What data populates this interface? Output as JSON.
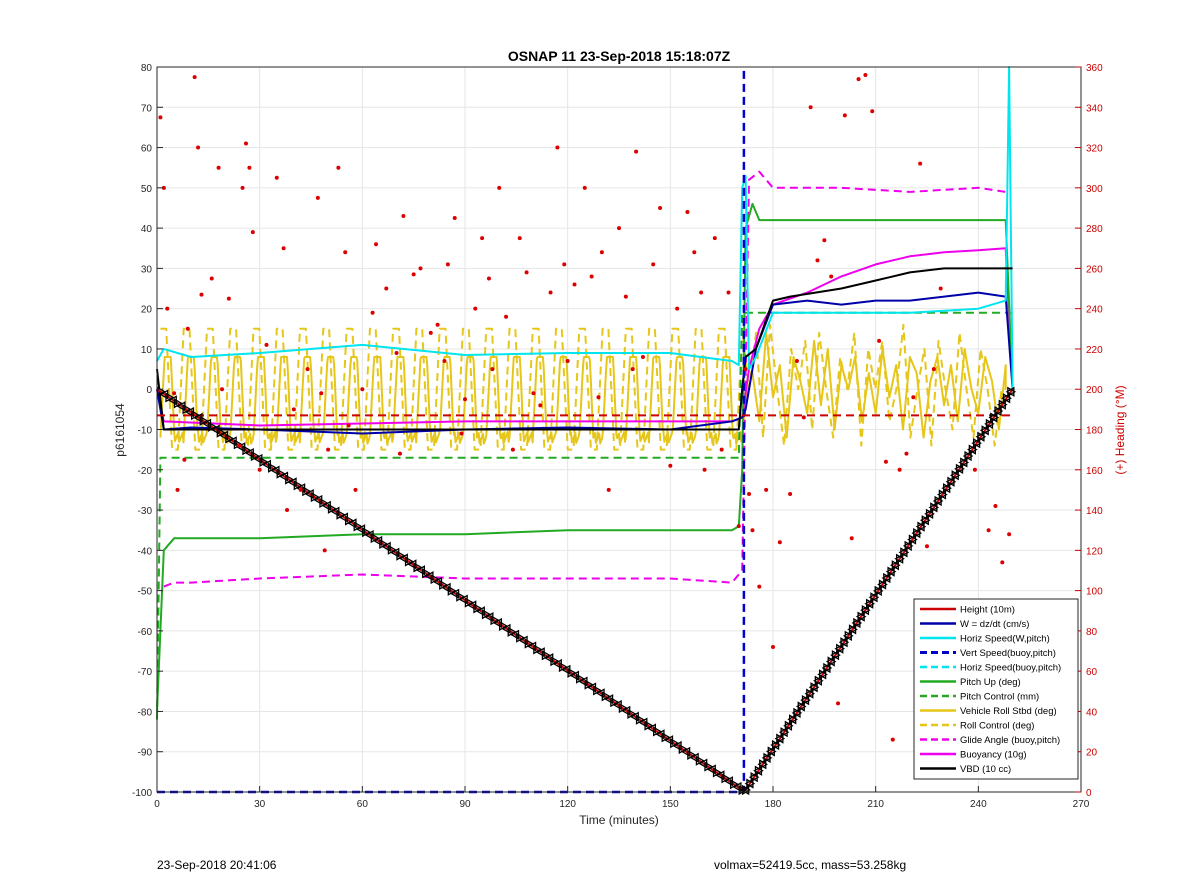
{
  "chart_data": {
    "type": "line",
    "title": "OSNAP 11 23-Sep-2018 15:18:07Z",
    "xlabel": "Time (minutes)",
    "ylabel": "p6161054",
    "y2label": "(+) Heading (°M)",
    "xlim": [
      0,
      270
    ],
    "ylim": [
      -100,
      80
    ],
    "y2lim": [
      0,
      360
    ],
    "xticks": [
      0,
      30,
      60,
      90,
      120,
      150,
      180,
      210,
      240,
      270
    ],
    "yticks": [
      -100,
      -90,
      -80,
      -70,
      -60,
      -50,
      -40,
      -30,
      -20,
      -10,
      0,
      10,
      20,
      30,
      40,
      50,
      60,
      70,
      80
    ],
    "y2ticks": [
      0,
      20,
      40,
      60,
      80,
      100,
      120,
      140,
      160,
      180,
      200,
      220,
      240,
      260,
      280,
      300,
      320,
      340,
      360
    ],
    "grid": true,
    "legend_position": "bottom-right",
    "series": [
      {
        "name": "Height (10m)",
        "color": "#cc0000",
        "style": "solid",
        "width": 2,
        "x": [
          0,
          171,
          172,
          250
        ],
        "y": [
          0,
          -99.5,
          -99.5,
          0
        ]
      },
      {
        "name": "W = dz/dt (cm/s)",
        "color": "#0000aa",
        "style": "solid",
        "width": 2,
        "x": [
          0,
          2,
          10,
          30,
          60,
          90,
          120,
          150,
          168,
          171,
          172,
          175,
          180,
          190,
          200,
          210,
          220,
          240,
          248,
          250
        ],
        "y": [
          0,
          -10,
          -9.5,
          -10,
          -11,
          -10,
          -9.5,
          -10,
          -8,
          -7,
          -5,
          10,
          21,
          22,
          21,
          22,
          22,
          24,
          23,
          0
        ]
      },
      {
        "name": "Horiz Speed(W,pitch)",
        "color": "#00e5ee",
        "style": "solid",
        "width": 2,
        "x": [
          0,
          2,
          10,
          30,
          60,
          90,
          120,
          150,
          168,
          170,
          171,
          172,
          173,
          175,
          180,
          200,
          220,
          240,
          248,
          249,
          250
        ],
        "y": [
          7,
          10,
          8,
          9,
          11,
          8.5,
          9,
          9,
          7,
          6,
          50,
          53,
          5,
          8,
          19,
          19,
          19,
          20,
          22,
          80,
          0
        ]
      },
      {
        "name": "Vert Speed(buoy,pitch)",
        "color": "#0000cc",
        "style": "dashed",
        "width": 2.5,
        "x": [
          0,
          171.5,
          171.5
        ],
        "y": [
          -100,
          -100,
          80
        ]
      },
      {
        "name": "Horiz Speed(buoy,pitch)",
        "color": "#00e5ee",
        "style": "dashed",
        "width": 2,
        "x": [],
        "y": []
      },
      {
        "name": "Pitch Up (deg)",
        "color": "#22aa22",
        "style": "solid",
        "width": 2,
        "x": [
          0,
          2,
          5,
          10,
          30,
          60,
          90,
          120,
          150,
          168,
          170,
          171,
          172,
          174,
          176,
          180,
          200,
          220,
          240,
          248,
          250
        ],
        "y": [
          -80,
          -40,
          -37,
          -37,
          -37,
          -36,
          -36,
          -35,
          -35,
          -35,
          -34,
          -20,
          40,
          46,
          42,
          42,
          42,
          42,
          42,
          42,
          0
        ]
      },
      {
        "name": "Pitch Control (mm)",
        "color": "#22aa22",
        "style": "dashed",
        "width": 2,
        "x": [
          0,
          1,
          2,
          60,
          120,
          168,
          170,
          171,
          173,
          250
        ],
        "y": [
          -82,
          -17,
          -17,
          -17,
          -17,
          -17,
          -17,
          19,
          19,
          19
        ]
      },
      {
        "name": "Vehicle Roll Stbd (deg)",
        "color": "#e6c619",
        "style": "solid",
        "width": 2,
        "x": [],
        "y": []
      },
      {
        "name": "Roll Control (deg)",
        "color": "#e6c619",
        "style": "dashed",
        "width": 2,
        "x": [],
        "y": []
      },
      {
        "name": "Glide Angle (buoy,pitch)",
        "color": "#ee00ee",
        "style": "dashed",
        "width": 2,
        "x": [
          2,
          5,
          10,
          30,
          60,
          90,
          120,
          150,
          168,
          171,
          173,
          176,
          180,
          200,
          220,
          240,
          248
        ],
        "y": [
          -49,
          -48,
          -48,
          -47,
          -46,
          -47,
          -47,
          -47,
          -48,
          -45,
          52,
          54,
          50,
          50,
          49,
          50,
          49
        ]
      },
      {
        "name": "Buoyancy (10g)",
        "color": "#ee00ee",
        "style": "solid",
        "width": 2,
        "x": [
          0,
          2,
          30,
          60,
          90,
          120,
          150,
          168,
          171,
          173,
          176,
          180,
          190,
          200,
          210,
          220,
          230,
          240,
          248,
          250
        ],
        "y": [
          0,
          -8,
          -9,
          -8.5,
          -8,
          -8,
          -8,
          -8,
          -7,
          5,
          15,
          21,
          24,
          28,
          31,
          33,
          34,
          34.5,
          35,
          0
        ]
      },
      {
        "name": "VBD (10 cc)",
        "color": "#000000",
        "style": "solid",
        "width": 2,
        "x": [
          0,
          2,
          30,
          60,
          90,
          120,
          150,
          170,
          171,
          172,
          175,
          180,
          185,
          200,
          210,
          220,
          230,
          240,
          250
        ],
        "y": [
          5,
          -10,
          -10,
          -10,
          -10,
          -10,
          -10,
          -10,
          0,
          8,
          10,
          22,
          23,
          25,
          27,
          29,
          30,
          30,
          30
        ]
      }
    ],
    "roll_stbd": {
      "x_start": 1,
      "x_end": 248,
      "dive_cycle_min": 6.8,
      "dive_low": -12,
      "dive_high": 8,
      "climb_start": 174,
      "climb_values": [
        4,
        -8,
        14,
        -2,
        6,
        -12,
        8,
        2,
        -6,
        12,
        -4,
        10,
        -10,
        6,
        0,
        8,
        -8,
        4,
        -6,
        10,
        -2,
        6,
        -10,
        8,
        4,
        -12,
        2,
        8,
        -4,
        6,
        -8,
        10,
        0,
        -6,
        8,
        2,
        -10,
        6
      ]
    },
    "roll_control": {
      "x_start": 1,
      "x_end": 248,
      "dive_cycle_min": 6.8,
      "dive_low": -15,
      "dive_high": 15
    },
    "heading_deg": {
      "x": [
        1,
        2,
        3,
        5,
        6,
        8,
        9,
        11,
        12,
        13,
        16,
        18,
        19,
        21,
        24,
        25,
        26,
        27,
        28,
        30,
        32,
        35,
        37,
        38,
        40,
        42,
        44,
        47,
        48,
        49,
        50,
        53,
        55,
        56,
        58,
        60,
        63,
        64,
        67,
        70,
        71,
        72,
        75,
        77,
        80,
        82,
        84,
        85,
        87,
        89,
        90,
        93,
        95,
        97,
        98,
        100,
        102,
        104,
        106,
        108,
        110,
        112,
        115,
        117,
        119,
        120,
        122,
        125,
        127,
        129,
        130,
        132,
        135,
        137,
        139,
        140,
        142,
        145,
        147,
        150,
        152,
        155,
        157,
        159,
        160,
        163,
        165,
        167,
        170,
        172,
        173,
        174,
        176,
        178,
        180,
        182,
        185,
        187,
        189,
        191,
        193,
        195,
        197,
        199,
        201,
        203,
        205,
        207,
        209,
        211,
        213,
        215,
        217,
        219,
        221,
        223,
        225,
        227,
        229,
        231,
        233,
        235,
        237,
        239,
        241,
        243,
        245,
        247,
        249
      ],
      "y": [
        335,
        300,
        240,
        198,
        150,
        165,
        230,
        355,
        320,
        247,
        255,
        310,
        200,
        245,
        172,
        300,
        322,
        310,
        278,
        160,
        222,
        305,
        270,
        140,
        190,
        150,
        210,
        295,
        198,
        120,
        170,
        310,
        268,
        182,
        150,
        200,
        238,
        272,
        250,
        218,
        168,
        286,
        257,
        260,
        228,
        232,
        214,
        262,
        285,
        178,
        195,
        240,
        275,
        255,
        210,
        300,
        236,
        170,
        275,
        258,
        198,
        192,
        248,
        320,
        262,
        214,
        252,
        300,
        256,
        196,
        268,
        150,
        280,
        246,
        210,
        318,
        216,
        262,
        290,
        162,
        240,
        288,
        268,
        248,
        160,
        275,
        170,
        248,
        132,
        210,
        148,
        130,
        102,
        150,
        72,
        124,
        148,
        214,
        186,
        340,
        264,
        274,
        256,
        44,
        336,
        126,
        354,
        356,
        338,
        224,
        164,
        26,
        160,
        168,
        196,
        312,
        122,
        210,
        250,
        32,
        30,
        52,
        58,
        160,
        60,
        130,
        142,
        114,
        128
      ]
    },
    "depth_markers": {
      "down": {
        "x_start": 1,
        "x_end": 171,
        "step": 1.25
      },
      "up": {
        "x_start": 172,
        "x_end": 250,
        "step": 1.25
      }
    }
  },
  "footer": {
    "left": "23-Sep-2018 20:41:06",
    "right": "volmax=52419.5cc, mass=53.258kg"
  }
}
